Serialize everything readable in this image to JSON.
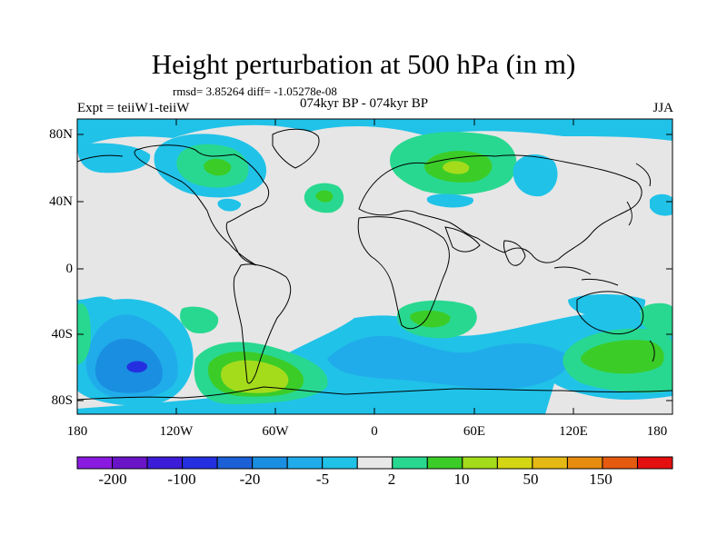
{
  "title": "Height perturbation at 500 hPa (in m)",
  "stats": "rmsd= 3.85264 diff= -1.05278e-08",
  "left_label": "Expt = teiiW1-teiiW",
  "center_label": "074kyr BP - 074kyr BP",
  "right_label": "JJA",
  "lat_labels": [
    "80N",
    "40N",
    "0",
    "40S",
    "80S"
  ],
  "lon_labels": [
    "180",
    "120W",
    "60W",
    "0",
    "60E",
    "120E",
    "180"
  ],
  "colorbar": {
    "colors": [
      "#8a1ae0",
      "#6a14c8",
      "#3c1cd8",
      "#2430e0",
      "#1c60d8",
      "#1a8ee0",
      "#20acea",
      "#20c2e8",
      "#e8e8e8",
      "#28d890",
      "#3ccc28",
      "#a4dc1c",
      "#d4d614",
      "#e6b814",
      "#e88c10",
      "#e65a10",
      "#e41010"
    ],
    "labels": [
      "-200",
      "-100",
      "-20",
      "-5",
      "2",
      "10",
      "50",
      "150"
    ]
  }
}
